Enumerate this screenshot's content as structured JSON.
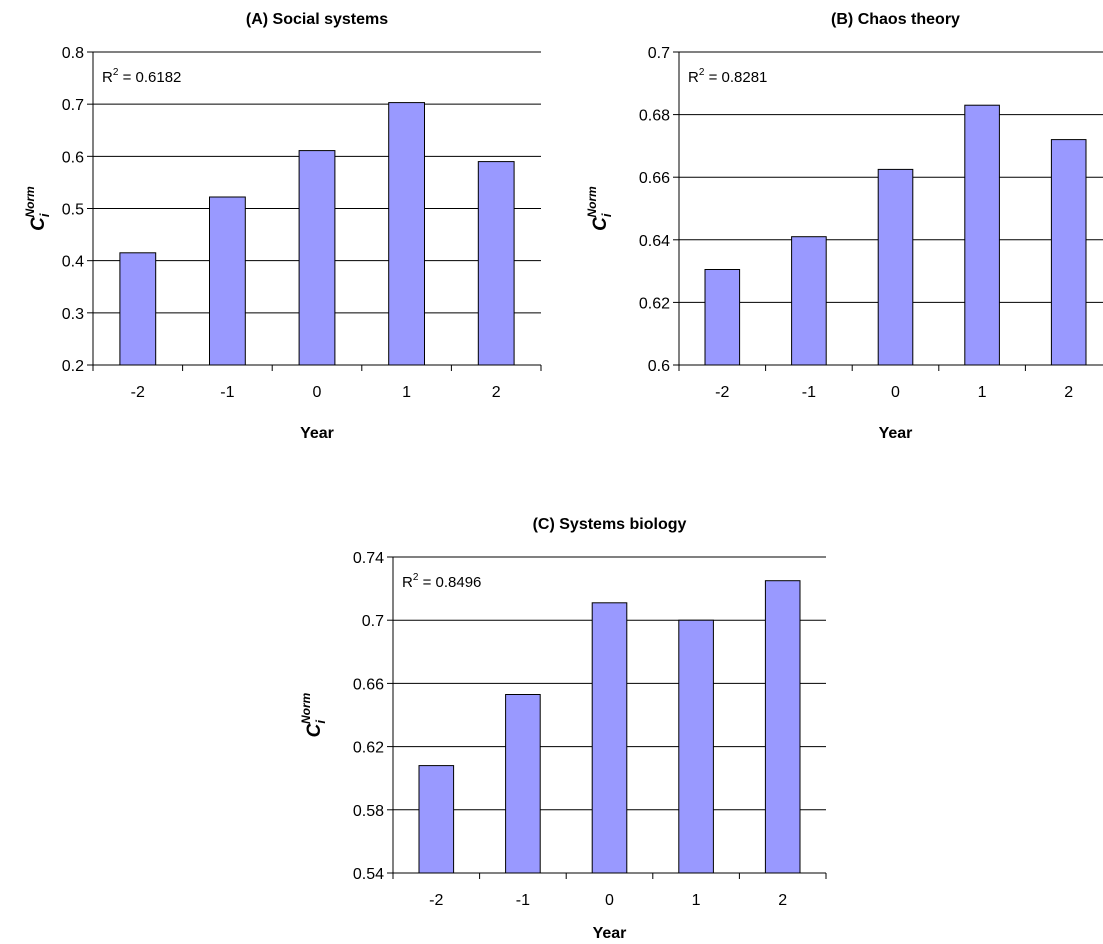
{
  "chart_data": [
    {
      "type": "bar",
      "title": "(A) Social systems",
      "xlabel": "Year",
      "ylabel": {
        "base": "C",
        "sub": "i",
        "sup": "Norm"
      },
      "annotation": {
        "prefix": "R",
        "sup": "2",
        "text": " = 0.6182"
      },
      "categories": [
        "-2",
        "-1",
        "0",
        "1",
        "2"
      ],
      "values": [
        0.415,
        0.522,
        0.611,
        0.703,
        0.59
      ],
      "ylim": [
        0.2,
        0.8
      ],
      "yticks": [
        "0.2",
        "0.3",
        "0.4",
        "0.5",
        "0.6",
        "0.7",
        "0.8"
      ],
      "grid": true,
      "bar_color": "#9999ff"
    },
    {
      "type": "bar",
      "title": "(B) Chaos theory",
      "xlabel": "Year",
      "ylabel": {
        "base": "C",
        "sub": "i",
        "sup": "Norm"
      },
      "annotation": {
        "prefix": "R",
        "sup": "2",
        "text": " = 0.8281"
      },
      "categories": [
        "-2",
        "-1",
        "0",
        "1",
        "2"
      ],
      "values": [
        0.6305,
        0.641,
        0.6625,
        0.683,
        0.672
      ],
      "ylim": [
        0.6,
        0.7
      ],
      "yticks": [
        "0.6",
        "0.62",
        "0.64",
        "0.66",
        "0.68",
        "0.7"
      ],
      "grid": true,
      "bar_color": "#9999ff"
    },
    {
      "type": "bar",
      "title": "(C) Systems biology",
      "xlabel": "Year",
      "ylabel": {
        "base": "C",
        "sub": "i",
        "sup": "Norm"
      },
      "annotation": {
        "prefix": "R",
        "sup": "2",
        "text": " = 0.8496"
      },
      "categories": [
        "-2",
        "-1",
        "0",
        "1",
        "2"
      ],
      "values": [
        0.608,
        0.653,
        0.711,
        0.7,
        0.725
      ],
      "ylim": [
        0.54,
        0.74
      ],
      "yticks": [
        "0.54",
        "0.58",
        "0.62",
        "0.66",
        "0.7",
        "0.74"
      ],
      "grid": true,
      "bar_color": "#9999ff"
    }
  ]
}
